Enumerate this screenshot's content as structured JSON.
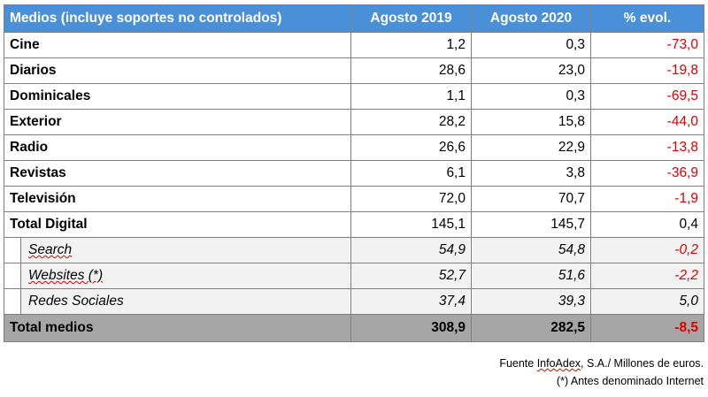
{
  "table": {
    "headers": [
      "Medios (incluye soportes no controlados)",
      "Agosto 2019",
      "Agosto 2020",
      "% evol."
    ],
    "rows": [
      {
        "label": "Cine",
        "v2019": "1,2",
        "v2020": "0,3",
        "evol": "-73,0"
      },
      {
        "label": "Diarios",
        "v2019": "28,6",
        "v2020": "23,0",
        "evol": "-19,8"
      },
      {
        "label": "Dominicales",
        "v2019": "1,1",
        "v2020": "0,3",
        "evol": "-69,5"
      },
      {
        "label": "Exterior",
        "v2019": "28,2",
        "v2020": "15,8",
        "evol": "-44,0"
      },
      {
        "label": "Radio",
        "v2019": "26,6",
        "v2020": "22,9",
        "evol": "-13,8"
      },
      {
        "label": "Revistas",
        "v2019": "6,1",
        "v2020": "3,8",
        "evol": "-36,9"
      },
      {
        "label": "Televisión",
        "v2019": "72,0",
        "v2020": "70,7",
        "evol": "-1,9"
      },
      {
        "label": "Total Digital",
        "v2019": "145,1",
        "v2020": "145,7",
        "evol": "0,4"
      }
    ],
    "subrows": [
      {
        "label": "Search",
        "v2019": "54,9",
        "v2020": "54,8",
        "evol": "-0,2"
      },
      {
        "label": "Websites (*)",
        "v2019": "52,7",
        "v2020": "51,6",
        "evol": "-2,2"
      },
      {
        "label": "Redes Sociales",
        "v2019": "37,4",
        "v2020": "39,3",
        "evol": "5,0"
      }
    ],
    "total": {
      "label": "Total medios",
      "v2019": "308,9",
      "v2020": "282,5",
      "evol": "-8,5"
    }
  },
  "footer": {
    "source_prefix": "Fuente ",
    "source_brand": "InfoAdex",
    "source_suffix": ", S.A./ Millones de euros.",
    "note": "(*) Antes denominado Internet"
  },
  "colors": {
    "header_bg": "#4a90d9",
    "negative": "#e00000",
    "total_bg": "#a6a6a6",
    "sub_bg": "#f2f2f2"
  }
}
